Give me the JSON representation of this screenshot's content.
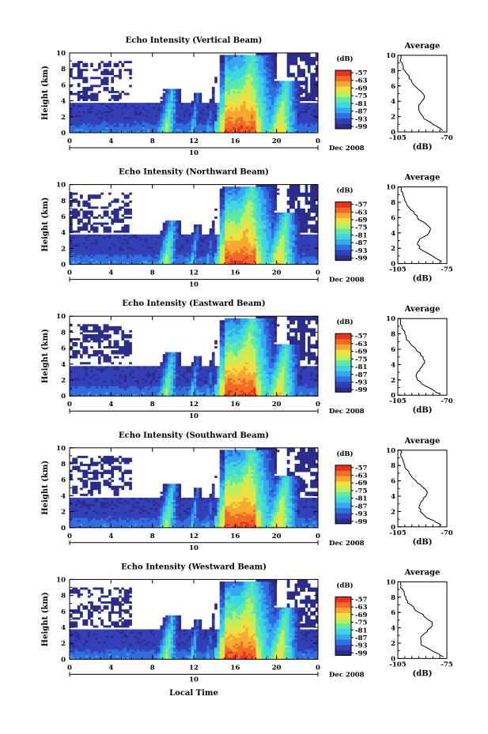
{
  "figure": {
    "xlabel_bottom": "Local Time",
    "date_label": "Dec 2008",
    "day_label": "10",
    "ylabel": "Height (km)",
    "colorbar_unit": "(dB)",
    "avg_title": "Average",
    "avg_xlabel": "(dB)"
  },
  "chart_data": [
    {
      "type": "heatmap",
      "title": "Echo Intensity (Vertical Beam)",
      "beam": "vertical",
      "xticks": [
        "0",
        "4",
        "8",
        "12",
        "16",
        "20",
        "0"
      ],
      "yticks": [
        "0",
        "2",
        "4",
        "6",
        "8",
        "10"
      ],
      "xlim_hours": [
        0,
        24
      ],
      "ylim_km": [
        0,
        10
      ],
      "colorbar_ticks": [
        "-57",
        "-63",
        "-69",
        "-75",
        "-81",
        "-87",
        "-93",
        "-99"
      ],
      "avg_profile": {
        "xticks": [
          "-105",
          "-70"
        ],
        "xlim_db": [
          -105,
          -70
        ],
        "height_km": [
          0.2,
          0.6,
          1.0,
          1.5,
          2.0,
          2.5,
          3.0,
          3.5,
          4.0,
          4.5,
          5.0,
          5.5,
          6.0,
          6.5,
          7.0,
          7.5,
          8.0,
          8.5,
          9.0,
          9.5,
          10.0
        ],
        "db": [
          -73,
          -76,
          -80,
          -84,
          -87,
          -89,
          -90,
          -90,
          -88,
          -86,
          -87,
          -90,
          -93,
          -95,
          -97,
          -98,
          -100,
          -101,
          -102,
          -103,
          -103
        ]
      }
    },
    {
      "type": "heatmap",
      "title": "Echo Intensity (Northward Beam)",
      "beam": "northward",
      "xticks": [
        "0",
        "4",
        "8",
        "12",
        "16",
        "20",
        "0"
      ],
      "yticks": [
        "0",
        "2",
        "4",
        "6",
        "8",
        "10"
      ],
      "xlim_hours": [
        0,
        24
      ],
      "ylim_km": [
        0,
        10
      ],
      "colorbar_ticks": [
        "-57",
        "-63",
        "-69",
        "-75",
        "-81",
        "-87",
        "-93",
        "-99"
      ],
      "avg_profile": {
        "xticks": [
          "-105",
          "-75"
        ],
        "xlim_db": [
          -105,
          -75
        ],
        "height_km": [
          0.2,
          0.6,
          1.0,
          1.5,
          2.0,
          2.5,
          3.0,
          3.5,
          4.0,
          4.5,
          5.0,
          5.5,
          6.0,
          6.5,
          7.0,
          7.5,
          8.0,
          8.5,
          9.0,
          9.5,
          10.0
        ],
        "db": [
          -78,
          -81,
          -84,
          -88,
          -92,
          -93,
          -92,
          -89,
          -86,
          -85,
          -87,
          -90,
          -93,
          -95,
          -97,
          -99,
          -100,
          -101,
          -102,
          -103,
          -103
        ]
      }
    },
    {
      "type": "heatmap",
      "title": "Echo Intensity (Eastward Beam)",
      "beam": "eastward",
      "xticks": [
        "0",
        "4",
        "8",
        "12",
        "16",
        "20",
        "0"
      ],
      "yticks": [
        "0",
        "2",
        "4",
        "6",
        "8",
        "10"
      ],
      "xlim_hours": [
        0,
        24
      ],
      "ylim_km": [
        0,
        10
      ],
      "colorbar_ticks": [
        "-57",
        "-63",
        "-69",
        "-75",
        "-81",
        "-87",
        "-93",
        "-99"
      ],
      "avg_profile": {
        "xticks": [
          "-105",
          "-70"
        ],
        "xlim_db": [
          -105,
          -70
        ],
        "height_km": [
          0.2,
          0.6,
          1.0,
          1.5,
          2.0,
          2.5,
          3.0,
          3.5,
          4.0,
          4.5,
          5.0,
          5.5,
          6.0,
          6.5,
          7.0,
          7.5,
          8.0,
          8.5,
          9.0,
          9.5,
          10.0
        ],
        "db": [
          -75,
          -79,
          -83,
          -88,
          -91,
          -92,
          -91,
          -89,
          -87,
          -86,
          -87,
          -89,
          -92,
          -95,
          -97,
          -99,
          -100,
          -101,
          -102,
          -103,
          -103
        ]
      }
    },
    {
      "type": "heatmap",
      "title": "Echo Intensity (Southward Beam)",
      "beam": "southward",
      "xticks": [
        "0",
        "4",
        "8",
        "12",
        "16",
        "20",
        "0"
      ],
      "yticks": [
        "0",
        "2",
        "4",
        "6",
        "8",
        "10"
      ],
      "xlim_hours": [
        0,
        24
      ],
      "ylim_km": [
        0,
        10
      ],
      "colorbar_ticks": [
        "-57",
        "-63",
        "-69",
        "-75",
        "-81",
        "-87",
        "-93",
        "-99"
      ],
      "avg_profile": {
        "xticks": [
          "-105",
          "-70"
        ],
        "xlim_db": [
          -105,
          -70
        ],
        "height_km": [
          0.2,
          0.6,
          1.0,
          1.5,
          2.0,
          2.5,
          3.0,
          3.5,
          4.0,
          4.5,
          5.0,
          5.5,
          6.0,
          6.5,
          7.0,
          7.5,
          8.0,
          8.5,
          9.0,
          9.5,
          10.0
        ],
        "db": [
          -74,
          -78,
          -82,
          -86,
          -89,
          -90,
          -89,
          -87,
          -85,
          -84,
          -86,
          -89,
          -92,
          -95,
          -97,
          -99,
          -100,
          -101,
          -102,
          -103,
          -103
        ]
      }
    },
    {
      "type": "heatmap",
      "title": "Echo Intensity (Westward Beam)",
      "beam": "westward",
      "xticks": [
        "0",
        "4",
        "8",
        "12",
        "16",
        "20",
        "0"
      ],
      "yticks": [
        "0",
        "2",
        "4",
        "6",
        "8",
        "10"
      ],
      "xlim_hours": [
        0,
        24
      ],
      "ylim_km": [
        0,
        10
      ],
      "colorbar_ticks": [
        "-57",
        "-63",
        "-69",
        "-75",
        "-81",
        "-87",
        "-93",
        "-99"
      ],
      "avg_profile": {
        "xticks": [
          "-105",
          "-75"
        ],
        "xlim_db": [
          -105,
          -75
        ],
        "height_km": [
          0.2,
          0.6,
          1.0,
          1.5,
          2.0,
          2.5,
          3.0,
          3.5,
          4.0,
          4.5,
          5.0,
          5.5,
          6.0,
          6.5,
          7.0,
          7.5,
          8.0,
          8.5,
          9.0,
          9.5,
          10.0
        ],
        "db": [
          -77,
          -80,
          -84,
          -88,
          -91,
          -91,
          -90,
          -87,
          -85,
          -84,
          -86,
          -89,
          -92,
          -95,
          -97,
          -99,
          -100,
          -101,
          -102,
          -103,
          -103
        ]
      }
    }
  ],
  "colors": {
    "colormap": [
      "#2b2d8c",
      "#3340b8",
      "#2f6fe0",
      "#35a8f0",
      "#3dd6e0",
      "#5fe8a8",
      "#b8f060",
      "#f0e040",
      "#f8a830",
      "#f26a28",
      "#e8321e"
    ]
  }
}
